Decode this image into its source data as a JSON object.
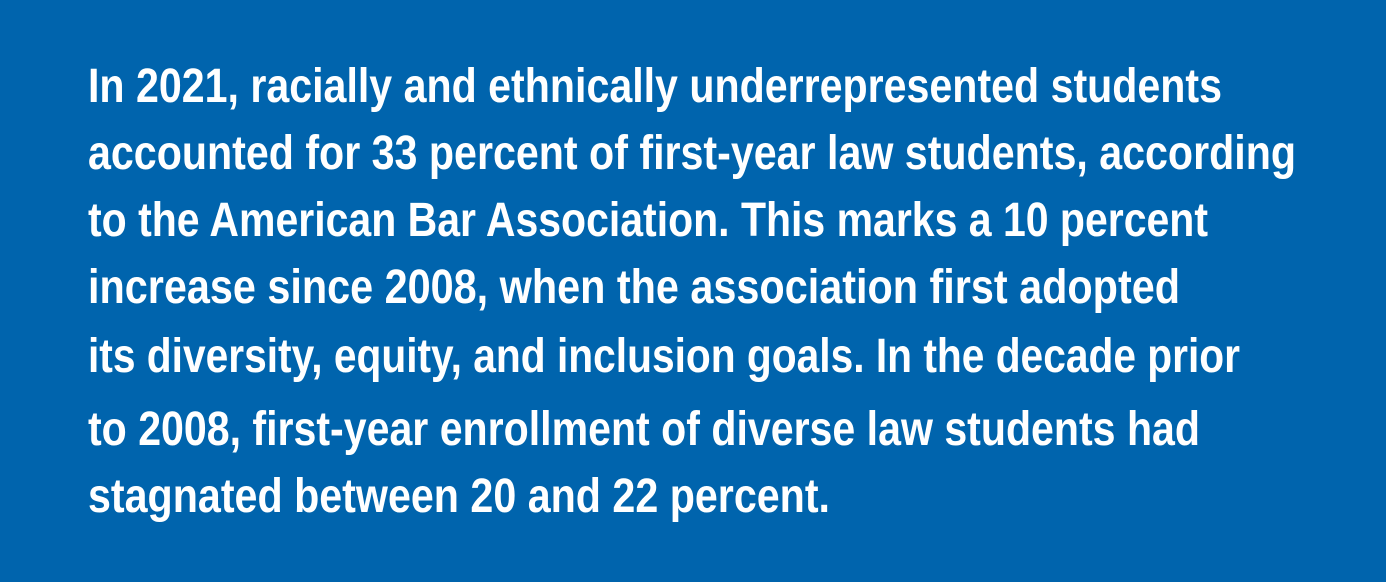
{
  "text": {
    "lines": [
      "In 2021, racially and ethnically underrepresented students",
      "accounted for 33 percent of first-year law students, according",
      "to the American Bar Association. This marks a 10 percent",
      "increase since 2008, when the association first adopted",
      "its diversity, equity, and inclusion goals. In the decade prior",
      "to 2008, first-year enrollment of diverse law students had",
      "stagnated between 20 and 22 percent."
    ]
  }
}
